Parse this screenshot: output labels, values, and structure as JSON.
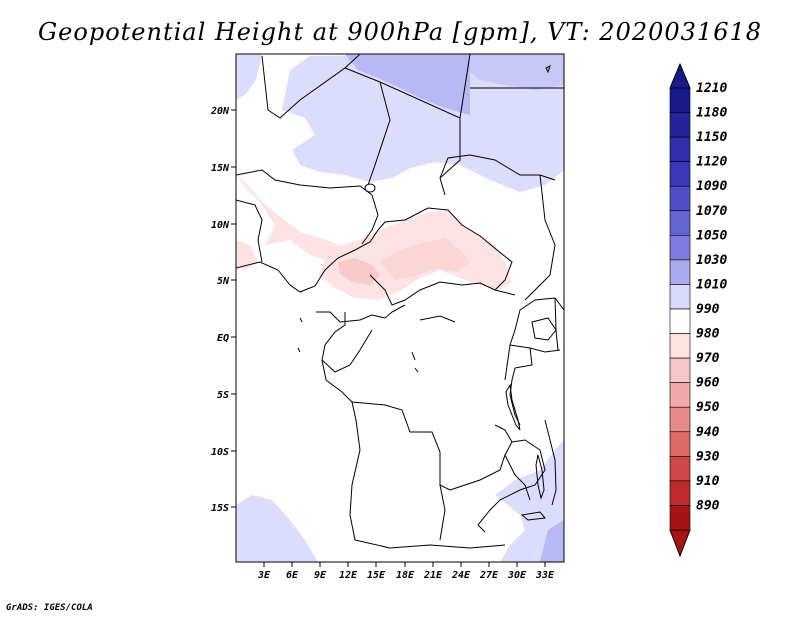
{
  "title": "Geopotential Height at 900hPa [gpm], VT: 2020031618",
  "credit": "GrADS: IGES/COLA",
  "map": {
    "region": "Central Africa",
    "lat_labels": [
      "20N",
      "15N",
      "10N",
      "5N",
      "EQ",
      "5S",
      "10S",
      "15S"
    ],
    "lon_labels": [
      "3E",
      "6E",
      "9E",
      "12E",
      "15E",
      "18E",
      "21E",
      "24E",
      "27E",
      "30E",
      "33E"
    ]
  },
  "colorbar": {
    "labels": [
      "1210",
      "1180",
      "1150",
      "1120",
      "1090",
      "1070",
      "1050",
      "1030",
      "1010",
      "990",
      "980",
      "970",
      "960",
      "950",
      "940",
      "930",
      "910",
      "890"
    ],
    "colors": [
      "#1a1a8c",
      "#24249c",
      "#2f2fab",
      "#3a3ab9",
      "#4f4fc7",
      "#6565d4",
      "#7b7be0",
      "#a9a9ee",
      "#d8d8fa",
      "#ffffff",
      "#fde2e2",
      "#f8c6c6",
      "#f0a8a8",
      "#e68888",
      "#dc6868",
      "#d04848",
      "#c02a2a",
      "#a81414"
    ]
  },
  "colors": {
    "light_blue": "#dcdcfc",
    "mid_blue": "#b8b8f5",
    "light_pink": "#fde3e3",
    "pink": "#f9caca"
  }
}
